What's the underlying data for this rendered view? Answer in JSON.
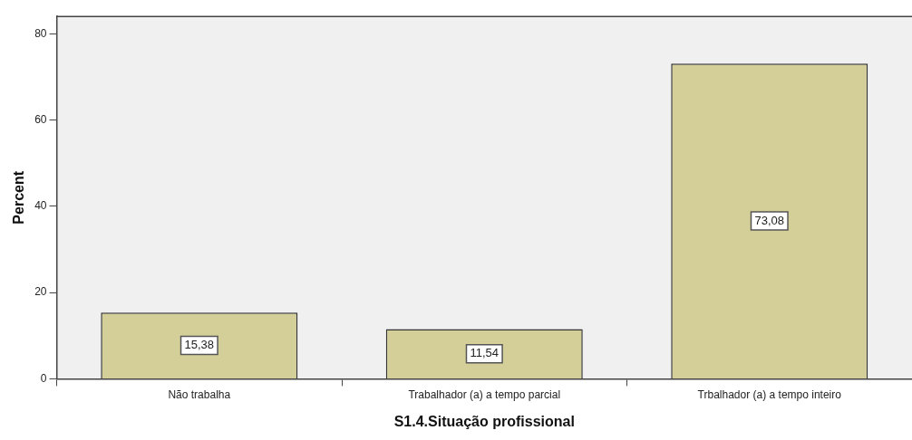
{
  "chart_data": {
    "type": "bar",
    "xlabel": "S1.4.Situação profissional",
    "ylabel": "Percent",
    "categories": [
      "Não trabalha",
      "Trabalhador (a) a tempo parcial",
      "Trbalhador (a) a tempo inteiro"
    ],
    "values": [
      15.38,
      11.54,
      73.08
    ],
    "value_labels": [
      "15,38",
      "11,54",
      "73,08"
    ],
    "color": "#d4cf98",
    "ylim": [
      0,
      84
    ],
    "yticks": [
      0,
      20,
      40,
      60,
      80
    ],
    "grid": false,
    "legend": false
  }
}
